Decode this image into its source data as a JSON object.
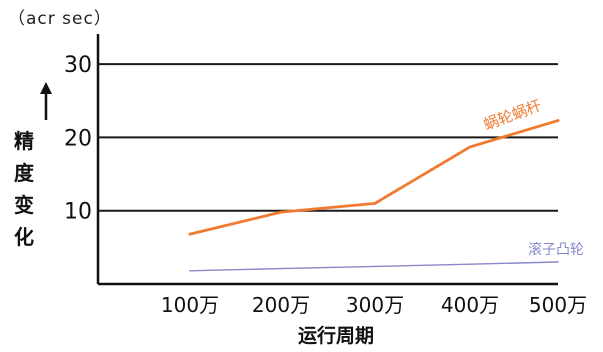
{
  "chart_data": {
    "type": "line",
    "unit_label": "（acr sec）",
    "ylabel": "精度变化",
    "xlabel": "运行周期",
    "categories": [
      "100万",
      "200万",
      "300万",
      "400万",
      "500万"
    ],
    "ylim": [
      0,
      30
    ],
    "yticks": [
      10,
      20,
      30
    ],
    "grid": true,
    "series": [
      {
        "name": "蜗轮蜗杆",
        "color": "#f07a30",
        "values": [
          6.8,
          9.8,
          11.0,
          18.7,
          22.3
        ]
      },
      {
        "name": "滚子凸轮",
        "color": "#8888cc",
        "values": [
          1.8,
          2.1,
          2.4,
          2.7,
          3.0
        ]
      }
    ]
  }
}
